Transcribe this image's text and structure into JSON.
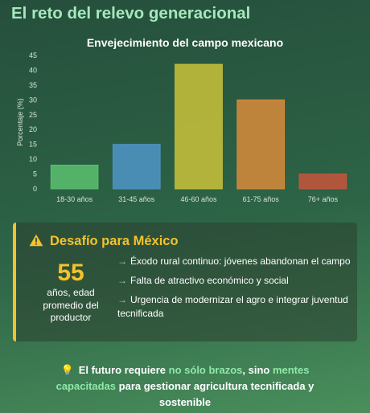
{
  "page": {
    "title": "El reto del relevo generacional"
  },
  "chart_data": {
    "type": "bar",
    "title": "Envejecimiento del campo mexicano",
    "categories": [
      "18-30 años",
      "31-45 años",
      "46-60 años",
      "61-75 años",
      "76+ años"
    ],
    "values": [
      8,
      15,
      42,
      30,
      5
    ],
    "colors": [
      "#5bbf6e",
      "#4f94c8",
      "#c9c23a",
      "#d98b3a",
      "#c8553c"
    ],
    "xlabel": "",
    "ylabel": "Porcentaje (%)",
    "ylim": [
      0,
      45
    ],
    "yticks": [
      0,
      5,
      10,
      15,
      20,
      25,
      30,
      35,
      40,
      45
    ],
    "grid": false,
    "legend": "none"
  },
  "challenge": {
    "icon": "warning-icon",
    "title": "Desafío para México",
    "stat_value": "55",
    "stat_caption": "años, edad promedio del productor",
    "points": [
      "Éxodo rural continuo: jóvenes abandonan el campo",
      "Falta de atractivo económico y social",
      "Urgencia de modernizar el agro e integrar juventud tecnificada"
    ],
    "accent_color": "#f5c22b"
  },
  "footer": {
    "icon": "lightbulb-icon",
    "part1": "El futuro requiere ",
    "hl1": "no sólo brazos",
    "part2": ", sino ",
    "hl2": "mentes capacitadas",
    "part3": " para gestionar agricultura tecnificada y sostenible"
  }
}
